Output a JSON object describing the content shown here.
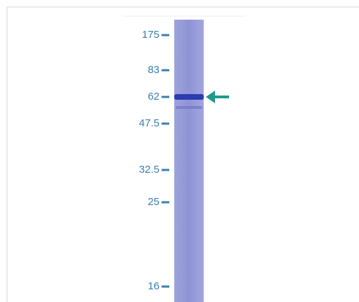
{
  "gel": {
    "markers": [
      "175",
      "83",
      "62",
      "47.5",
      "32.5",
      "25",
      "16"
    ]
  }
}
